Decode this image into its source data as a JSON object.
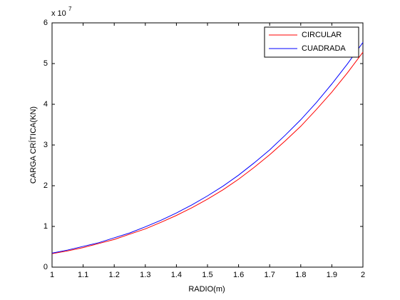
{
  "chart_data": {
    "type": "line",
    "x_label": "RADIO(m)",
    "y_label": "CARGA CRÍTICA(KN)",
    "y_multiplier": {
      "base": "x 10",
      "exponent": "7"
    },
    "x": [
      1.0,
      1.05,
      1.1,
      1.15,
      1.2,
      1.25,
      1.3,
      1.35,
      1.4,
      1.45,
      1.5,
      1.55,
      1.6,
      1.65,
      1.7,
      1.75,
      1.8,
      1.85,
      1.9,
      1.95,
      2.0
    ],
    "series": [
      {
        "name": "CIRCULAR",
        "color": "#ff0000",
        "values": [
          0.33,
          0.4,
          0.48,
          0.58,
          0.68,
          0.81,
          0.94,
          1.1,
          1.27,
          1.46,
          1.67,
          1.9,
          2.16,
          2.45,
          2.76,
          3.1,
          3.46,
          3.87,
          4.3,
          4.77,
          5.28
        ]
      },
      {
        "name": "CUADRADA",
        "color": "#0000ff",
        "values": [
          0.345,
          0.42,
          0.51,
          0.6,
          0.72,
          0.84,
          0.99,
          1.15,
          1.33,
          1.53,
          1.75,
          1.99,
          2.26,
          2.56,
          2.88,
          3.24,
          3.62,
          4.04,
          4.5,
          4.99,
          5.52
        ]
      }
    ],
    "xlim": [
      1,
      2
    ],
    "xticks": [
      1,
      1.1,
      1.2,
      1.3,
      1.4,
      1.5,
      1.6,
      1.7,
      1.8,
      1.9,
      2
    ],
    "ylim": [
      0,
      6
    ],
    "yticks": [
      0,
      1,
      2,
      3,
      4,
      5,
      6
    ],
    "grid": false,
    "legend": "top-right"
  }
}
